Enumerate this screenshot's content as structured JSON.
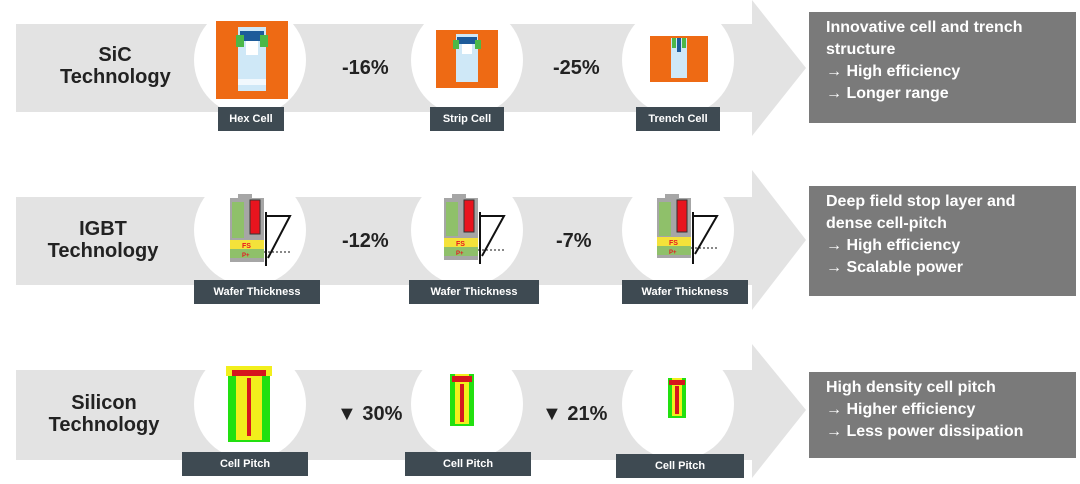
{
  "rows": [
    {
      "title": "SiC\nTechnology",
      "steps": [
        "-16%",
        "-25%"
      ],
      "labels": [
        "Hex Cell",
        "Strip Cell",
        "Trench Cell"
      ],
      "info_title": [
        "Innovative cell and trench",
        "structure"
      ],
      "info_points": [
        "→ High efficiency",
        "→ Longer range"
      ]
    },
    {
      "title": "IGBT\nTechnology",
      "steps": [
        "-12%",
        "-7%"
      ],
      "labels": [
        "Wafer Thickness",
        "Wafer Thickness",
        "Wafer Thickness"
      ],
      "info_title": [
        "Deep field stop layer  and",
        "dense cell-pitch"
      ],
      "info_points": [
        "→ High efficiency",
        "→ Scalable power"
      ]
    },
    {
      "title": "Silicon\nTechnology",
      "steps": [
        "▼ 30%",
        "▼ 21%"
      ],
      "labels": [
        "Cell Pitch",
        "Cell Pitch",
        "Cell Pitch"
      ],
      "info_title": [
        "High density cell pitch"
      ],
      "info_points": [
        "→ Higher efficiency",
        "→ Less power dissipation"
      ]
    }
  ],
  "igbt_layer_labels": {
    "field_stop": "FS",
    "collector": "P+"
  },
  "colors": {
    "arrow_fill": "#e3e3e3",
    "label_bg": "#3e4a52",
    "info_bg": "#7a7a7a",
    "sic_orange": "#ee6a14",
    "cell_light_blue": "#cfe8f7",
    "igbt_red": "#e8141e",
    "igbt_yellow": "#f4e23a",
    "igbt_green": "#8fc06a",
    "silicon_green": "#22e010",
    "silicon_yellow": "#f2ef1c",
    "silicon_red": "#d6161e"
  }
}
